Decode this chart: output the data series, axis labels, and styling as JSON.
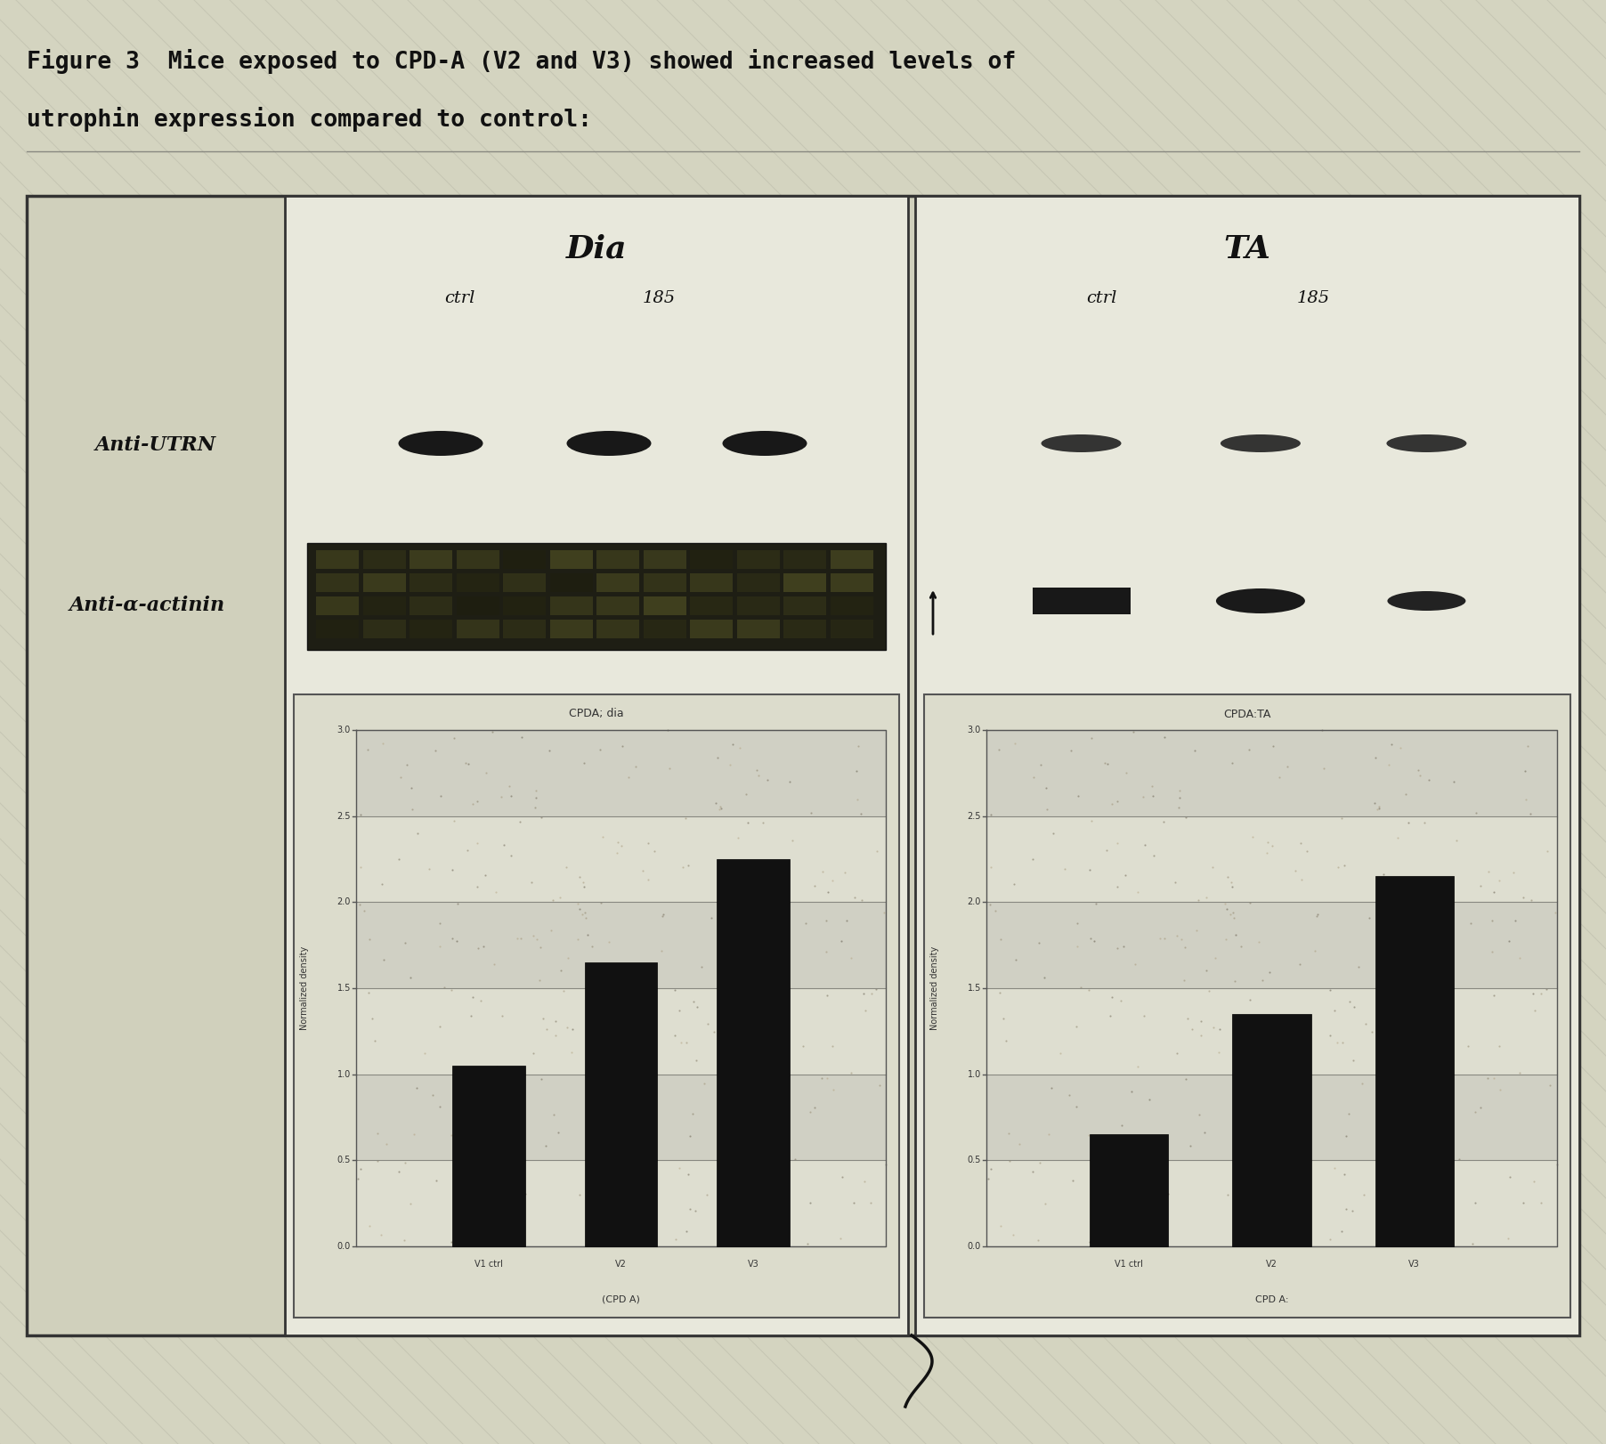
{
  "title_line1": "Figure 3  Mice exposed to CPD-A (V2 and V3) showed increased levels of",
  "title_line2": "utrophin expression compared to control:",
  "left_panel_title": "Dia",
  "right_panel_title": "TA",
  "left_bar_title": "CPDA; dia",
  "right_bar_title": "CPDA:TA",
  "left_xlabel": "(CPD A)",
  "right_xlabel": "CPD A:",
  "ylabel": "Normalized density",
  "row_label_utrn": "Anti-UTRN",
  "row_label_actin": "Anti-α-actinin",
  "bar_categories": [
    "V1 ctrl",
    "V2",
    "V3"
  ],
  "dia_values": [
    1.05,
    1.65,
    2.25
  ],
  "ta_values": [
    0.65,
    1.35,
    2.15
  ],
  "bar_color": "#111111",
  "figure_bg": "#d4d4c0",
  "hatch_color": "#bcbcaa",
  "outer_box_bg": "#d0d0bc",
  "panel_bg": "#e8e8dc",
  "blot_color": "#1a1a1a",
  "big_blot_color": "#2a2a1e",
  "bar_chart_bg": "#dcdccc"
}
